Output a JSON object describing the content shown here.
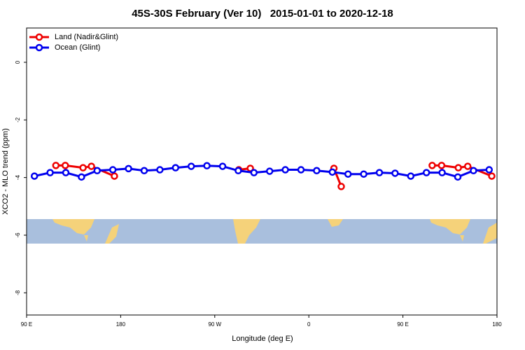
{
  "chart_data": {
    "type": "line",
    "title": "45S-30S February (Ver 10)   2015-01-01 to 2020-12-18",
    "xlabel": "Longitude (deg E)",
    "ylabel": "XCO2 - MLO trend (ppm)",
    "xlim": [
      90,
      540
    ],
    "xticks": [
      {
        "value": 90,
        "label": "90 E"
      },
      180,
      {
        "value": 270,
        "label": "90 W"
      },
      {
        "value": 360,
        "label": "0"
      },
      {
        "value": 450,
        "label": "90 E"
      },
      {
        "value": 540,
        "label": "180"
      }
    ],
    "ylim": [
      -8.77,
      1.19
    ],
    "yticks": [
      0,
      -2,
      -4,
      -6,
      -8
    ],
    "legend": "top-left",
    "series": [
      {
        "name": "Land (Nadir&Glint)",
        "color": "#ee0000",
        "x": [
          118,
          127,
          144,
          152,
          174,
          null,
          293,
          304,
          null,
          384,
          391,
          null,
          478,
          487,
          503,
          512,
          535
        ],
        "values": [
          -3.58,
          -3.58,
          -3.66,
          -3.61,
          -3.95,
          null,
          -3.73,
          -3.68,
          null,
          -3.68,
          -4.31,
          null,
          -3.58,
          -3.58,
          -3.66,
          -3.61,
          -3.95
        ]
      },
      {
        "name": "Ocean (Glint)",
        "color": "#0000ee",
        "x": [
          97.5,
          112.5,
          127.5,
          142.5,
          157.5,
          172.5,
          187.5,
          202.5,
          217.5,
          232.5,
          247.5,
          262.5,
          277.5,
          292.5,
          307.5,
          322.5,
          337.5,
          352.5,
          367.5,
          382.5,
          397.5,
          412.5,
          427.5,
          442.5,
          457.5,
          472.5,
          487.5,
          502.5,
          517.5,
          532.5
        ],
        "values": [
          -3.95,
          -3.83,
          -3.83,
          -3.98,
          -3.76,
          -3.73,
          -3.69,
          -3.76,
          -3.73,
          -3.66,
          -3.61,
          -3.59,
          -3.61,
          -3.76,
          -3.83,
          -3.78,
          -3.73,
          -3.73,
          -3.76,
          -3.81,
          -3.88,
          -3.88,
          -3.83,
          -3.85,
          -3.95,
          -3.83,
          -3.83,
          -3.98,
          -3.76,
          -3.73
        ]
      }
    ]
  }
}
